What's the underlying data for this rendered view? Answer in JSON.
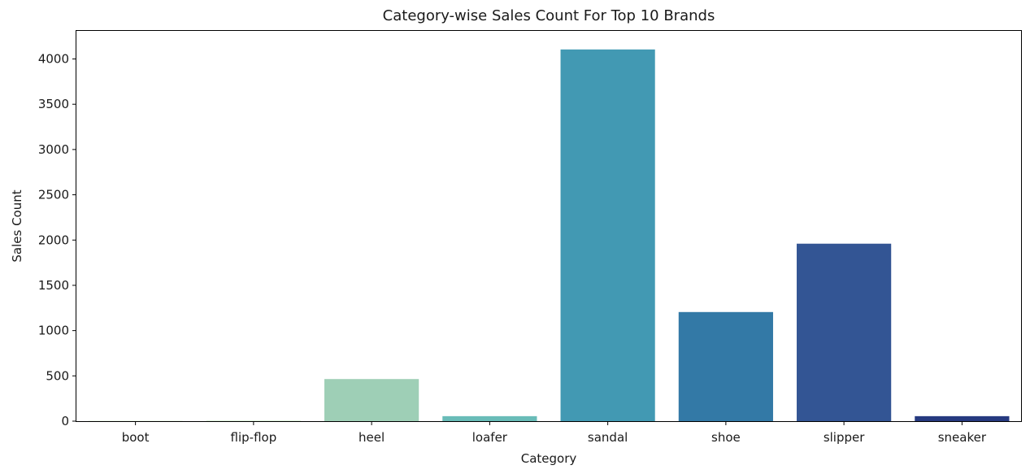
{
  "chart_data": {
    "type": "bar",
    "title": "Category-wise Sales Count For Top 10 Brands",
    "xlabel": "Category",
    "ylabel": "Sales Count",
    "categories": [
      "boot",
      "flip-flop",
      "heel",
      "loafer",
      "sandal",
      "shoe",
      "slipper",
      "sneaker"
    ],
    "values": [
      5,
      5,
      465,
      55,
      4105,
      1205,
      1960,
      55
    ],
    "colors": [
      "#e0f3d8",
      "#c6e9c0",
      "#9ecfb6",
      "#69bcb8",
      "#4299b3",
      "#3379a6",
      "#335594",
      "#263a80"
    ],
    "yticks": [
      0,
      500,
      1000,
      1500,
      2000,
      2500,
      3000,
      3500,
      4000
    ],
    "ylim": [
      0,
      4310
    ],
    "grid": false,
    "legend": false
  }
}
